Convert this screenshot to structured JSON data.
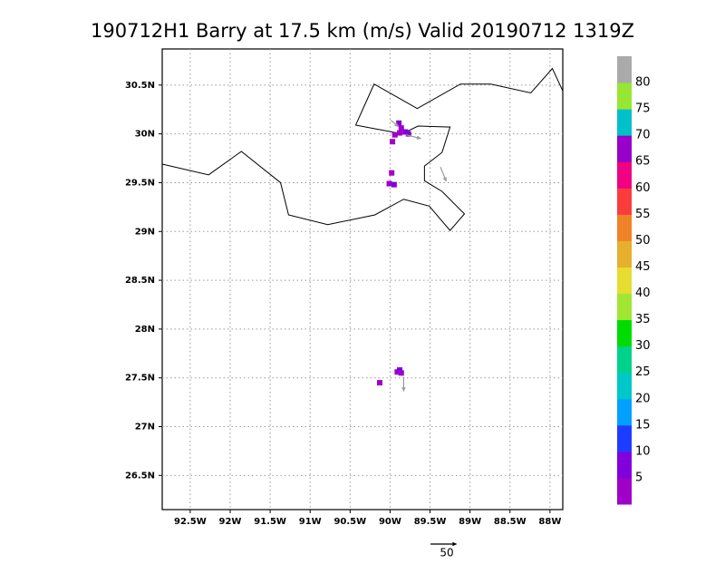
{
  "chart_data": {
    "type": "map",
    "title": "190712H1 Barry at 17.5 km (m/s) Valid 20190712 1319Z",
    "xlim": [
      -92.85,
      -87.84
    ],
    "ylim": [
      26.15,
      30.87
    ],
    "xticks": [
      {
        "value": -92.5,
        "label": "92.5W"
      },
      {
        "value": -92,
        "label": "92W"
      },
      {
        "value": -91.5,
        "label": "91.5W"
      },
      {
        "value": -91,
        "label": "91W"
      },
      {
        "value": -90.5,
        "label": "90.5W"
      },
      {
        "value": -90,
        "label": "90W"
      },
      {
        "value": -89.5,
        "label": "89.5W"
      },
      {
        "value": -89,
        "label": "89W"
      },
      {
        "value": -88.5,
        "label": "88.5W"
      },
      {
        "value": -88,
        "label": "88W"
      }
    ],
    "yticks": [
      {
        "value": 26.5,
        "label": "26.5N"
      },
      {
        "value": 27,
        "label": "27N"
      },
      {
        "value": 27.5,
        "label": "27.5N"
      },
      {
        "value": 28,
        "label": "28N"
      },
      {
        "value": 28.5,
        "label": "28.5N"
      },
      {
        "value": 29,
        "label": "29N"
      },
      {
        "value": 29.5,
        "label": "29.5N"
      },
      {
        "value": 30,
        "label": "30N"
      },
      {
        "value": 30.5,
        "label": "30.5N"
      }
    ],
    "grid": true,
    "coastline": {
      "lon": [
        -92.85,
        -92.27,
        -91.86,
        -91.37,
        -91.27,
        -90.78,
        -90.19,
        -89.83,
        -89.51,
        -89.25,
        -89.07,
        -89.35,
        -89.57,
        -89.57,
        -89.35,
        -89.25,
        -89.65,
        -89.85,
        -90.43,
        -90.2,
        -89.66,
        -89.12,
        -88.74,
        -88.24,
        -87.97,
        -87.84
      ],
      "lat": [
        29.69,
        29.58,
        29.82,
        29.5,
        29.17,
        29.07,
        29.17,
        29.33,
        29.26,
        29.01,
        29.18,
        29.41,
        29.52,
        29.67,
        29.81,
        30.07,
        30.08,
        30.0,
        30.09,
        30.51,
        30.26,
        30.51,
        30.51,
        30.42,
        30.67,
        30.44
      ]
    },
    "cells": {
      "lon": [
        -89.89,
        -89.86,
        -89.81,
        -89.88,
        -89.94,
        -89.77,
        -89.97,
        -89.98,
        -90.01,
        -89.95,
        -89.91,
        -89.86,
        -89.88,
        -90.13
      ],
      "lat": [
        30.11,
        30.06,
        30.02,
        30.01,
        29.99,
        30.0,
        29.92,
        29.6,
        29.49,
        29.48,
        27.56,
        27.55,
        27.58,
        27.45
      ],
      "values": [
        6,
        4,
        7,
        3,
        4,
        6,
        4,
        3,
        4,
        6,
        4,
        3,
        6,
        4
      ]
    },
    "vectors": {
      "lon": [
        -89.8,
        -89.37,
        -89.83,
        -89.99
      ],
      "lat": [
        29.99,
        29.66,
        27.51,
        30.14
      ],
      "u": [
        28,
        11,
        0,
        14
      ],
      "v": [
        -7,
        -27,
        -27,
        -12
      ]
    },
    "vector_reference": 50,
    "colorbar": {
      "levels": [
        5,
        10,
        15,
        20,
        25,
        30,
        35,
        40,
        45,
        50,
        55,
        60,
        65,
        70,
        75,
        80
      ],
      "colors": [
        "#a000c8",
        "#8200dc",
        "#1e3cff",
        "#00a0ff",
        "#00c8c8",
        "#00d28c",
        "#00dc00",
        "#a0e632",
        "#e6dc32",
        "#e6af2d",
        "#f08228",
        "#fa3c3c",
        "#f00082",
        "#9600c8",
        "#00c0c8",
        "#96e632",
        "#aaaaaa"
      ]
    }
  }
}
